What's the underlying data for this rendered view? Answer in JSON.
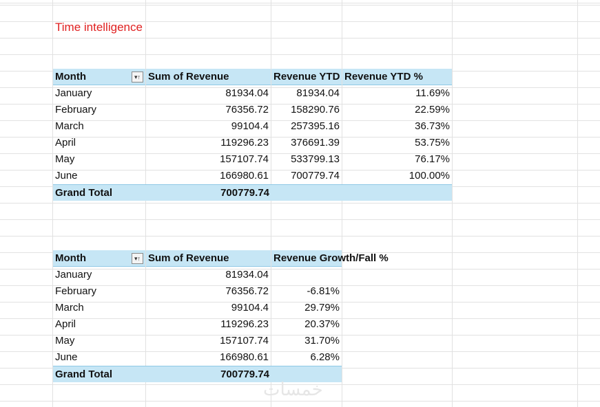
{
  "sheet_title": "Time intelligence",
  "pivot1": {
    "headers": [
      "Month",
      "Sum of Revenue",
      "Revenue YTD",
      "Revenue YTD %"
    ],
    "rows": [
      [
        "January",
        "81934.04",
        "81934.04",
        "11.69%"
      ],
      [
        "February",
        "76356.72",
        "158290.76",
        "22.59%"
      ],
      [
        "March",
        "99104.4",
        "257395.16",
        "36.73%"
      ],
      [
        "April",
        "119296.23",
        "376691.39",
        "53.75%"
      ],
      [
        "May",
        "157107.74",
        "533799.13",
        "76.17%"
      ],
      [
        "June",
        "166980.61",
        "700779.74",
        "100.00%"
      ]
    ],
    "total": [
      "Grand Total",
      "700779.74",
      "",
      ""
    ]
  },
  "pivot2": {
    "headers": [
      "Month",
      "Sum of Revenue",
      "Revenue Growth/Fall %"
    ],
    "rows": [
      [
        "January",
        "81934.04",
        ""
      ],
      [
        "February",
        "76356.72",
        "-6.81%"
      ],
      [
        "March",
        "99104.4",
        "29.79%"
      ],
      [
        "April",
        "119296.23",
        "20.37%"
      ],
      [
        "May",
        "157107.74",
        "31.70%"
      ],
      [
        "June",
        "166980.61",
        "6.28%"
      ]
    ],
    "total": [
      "Grand Total",
      "700779.74",
      ""
    ]
  },
  "filter_button_glyph": "▾↑",
  "watermark_text": "خمسات",
  "colors": {
    "header_fill": "#c6e6f5",
    "title_color": "#e02020",
    "gridline": "#e1e1e1"
  }
}
